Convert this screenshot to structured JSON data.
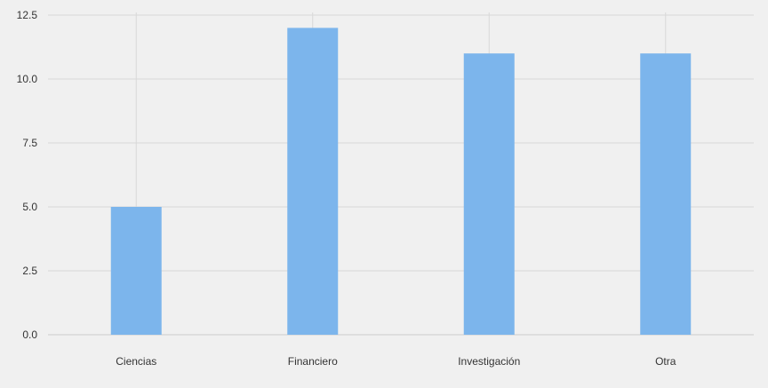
{
  "chart_data": {
    "type": "bar",
    "title": "",
    "xlabel": "",
    "ylabel": "",
    "categories": [
      "Ciencias",
      "Financiero",
      "Investigación",
      "Otra"
    ],
    "values": [
      5,
      12,
      11,
      11
    ],
    "ylim": [
      0,
      12.5
    ],
    "yticks": [
      "0.0",
      "2.5",
      "5.0",
      "7.5",
      "10.0",
      "12.5"
    ],
    "grid": true,
    "legend": "none",
    "colors": {
      "bar": "#7cb5ec",
      "grid": "#d8d8d8",
      "axis": "#cccccc",
      "background": "#f0f0f0",
      "text": "#333333"
    }
  }
}
